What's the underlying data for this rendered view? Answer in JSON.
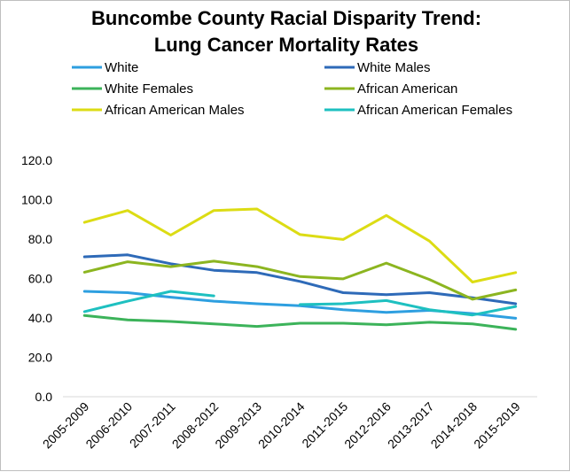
{
  "chart_data": {
    "type": "line",
    "title_lines": [
      "Buncombe County Racial Disparity Trend:",
      "Lung Cancer Mortality Rates"
    ],
    "xlabel": "",
    "ylabel": "",
    "categories": [
      "2005-2009",
      "2006-2010",
      "2007-2011",
      "2008-2012",
      "2009-2013",
      "2010-2014",
      "2011-2015",
      "2012-2016",
      "2013-2017",
      "2014-2018",
      "2015-2019"
    ],
    "y_ticks": [
      "0.0",
      "20.0",
      "40.0",
      "60.0",
      "80.0",
      "100.0",
      "120.0"
    ],
    "ylim": [
      0,
      120
    ],
    "grid": false,
    "legend_position": "top",
    "series": [
      {
        "name": "White",
        "color": "#2e9fe0",
        "values": [
          53.5,
          52.8,
          50.5,
          48.5,
          47.2,
          46.2,
          44.2,
          42.8,
          43.8,
          42.2,
          39.8
        ]
      },
      {
        "name": "White Males",
        "color": "#2e6ab8",
        "values": [
          71.0,
          72.0,
          67.5,
          64.2,
          63.0,
          58.5,
          52.8,
          51.8,
          52.8,
          50.2,
          47.2
        ]
      },
      {
        "name": "White Females",
        "color": "#3cb35a",
        "values": [
          41.2,
          39.0,
          38.2,
          37.0,
          35.7,
          37.3,
          37.3,
          36.5,
          37.8,
          37.0,
          34.2
        ]
      },
      {
        "name": "African American",
        "color": "#8cb520",
        "values": [
          63.2,
          68.5,
          66.0,
          68.8,
          66.0,
          61.0,
          59.8,
          67.8,
          59.5,
          49.5,
          54.2
        ]
      },
      {
        "name": "African American Males",
        "color": "#dcdc14",
        "values": [
          88.5,
          94.5,
          82.0,
          94.5,
          95.3,
          82.3,
          79.8,
          92.0,
          79.0,
          58.2,
          63.0
        ]
      },
      {
        "name": "African American Females",
        "color": "#1ec0c0",
        "values": [
          43.2,
          48.5,
          53.5,
          51.2,
          null,
          46.8,
          47.2,
          48.8,
          44.2,
          41.5,
          45.8
        ]
      }
    ]
  }
}
